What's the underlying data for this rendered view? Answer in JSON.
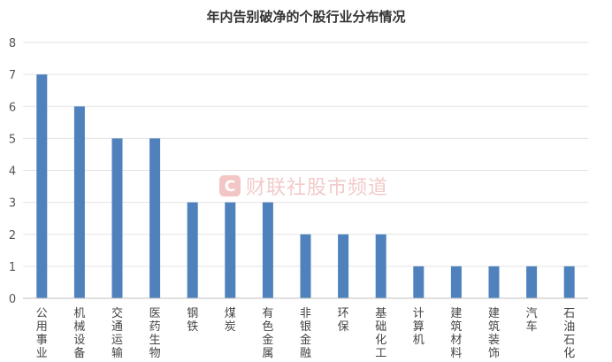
{
  "chart_data": {
    "type": "bar",
    "title": "年内告别破净的个股行业分布情况",
    "categories": [
      "公用事业",
      "机械设备",
      "交通运输",
      "医药生物",
      "钢铁",
      "煤炭",
      "有色金属",
      "非银金融",
      "环保",
      "基础化工",
      "计算机",
      "建筑材料",
      "建筑装饰",
      "汽车",
      "石油石化"
    ],
    "values": [
      7,
      6,
      5,
      5,
      3,
      3,
      3,
      2,
      2,
      2,
      1,
      1,
      1,
      1,
      1
    ],
    "ylim": [
      0,
      8
    ],
    "yticks": [
      0,
      1,
      2,
      3,
      4,
      5,
      6,
      7,
      8
    ],
    "grid": true,
    "bar_color": "#4f81bd",
    "xlabel": "",
    "ylabel": ""
  },
  "watermark": {
    "logo_letter": "C",
    "text": "财联社股市频道",
    "color": "#e9a0a0"
  }
}
